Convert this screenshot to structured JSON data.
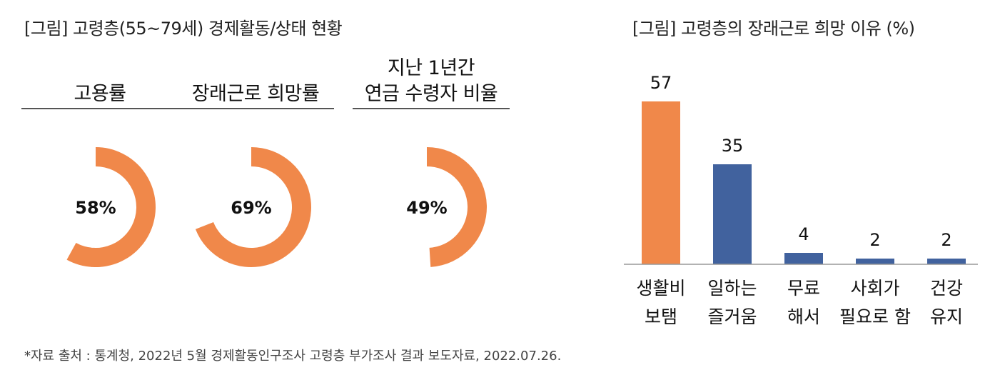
{
  "left_panel": {
    "title": "[그림] 고령층(55~79세) 경제활동/상태 현황",
    "kpis": [
      {
        "label": "고용률",
        "value": 58,
        "value_label": "58%"
      },
      {
        "label": "장래근로 희망률",
        "value": 69,
        "value_label": "69%"
      },
      {
        "label": "지난 1년간\n연금 수령자 비율",
        "value": 49,
        "value_label": "49%"
      }
    ]
  },
  "right_panel": {
    "title": "[그림] 고령층의 장래근로 희망 이유 (%)"
  },
  "source": "*자료 출처 : 통계청, 2022년 5월 경제활동인구조사 고령층 부가조사 결과 보도자료, 2022.07.26.",
  "colors": {
    "orange": "#F0884A",
    "blue": "#41629E",
    "axis": "#999999"
  },
  "chart_data": [
    {
      "type": "donut",
      "title": "[그림] 고령층(55~79세) 경제활동/상태 현황",
      "categories": [
        "고용률",
        "장래근로 희망률",
        "지난 1년간 연금 수령자 비율"
      ],
      "values": [
        58,
        69,
        49
      ],
      "unit": "%"
    },
    {
      "type": "bar",
      "title": "[그림] 고령층의 장래근로 희망 이유 (%)",
      "categories": [
        "생활비 보탬",
        "일하는 즐거움",
        "무료 해서",
        "사회가 필요로 함",
        "건강 유지"
      ],
      "category_lines": [
        [
          "생활비",
          "보탬"
        ],
        [
          "일하는",
          "즐거움"
        ],
        [
          "무료",
          "해서"
        ],
        [
          "사회가",
          "필요로 함"
        ],
        [
          "건강",
          "유지"
        ]
      ],
      "values": [
        57,
        35,
        4,
        2,
        2
      ],
      "bar_colors": [
        "#F0884A",
        "#41629E",
        "#41629E",
        "#41629E",
        "#41629E"
      ],
      "ylim": [
        0,
        60
      ],
      "grid": false,
      "legend": "none"
    }
  ]
}
